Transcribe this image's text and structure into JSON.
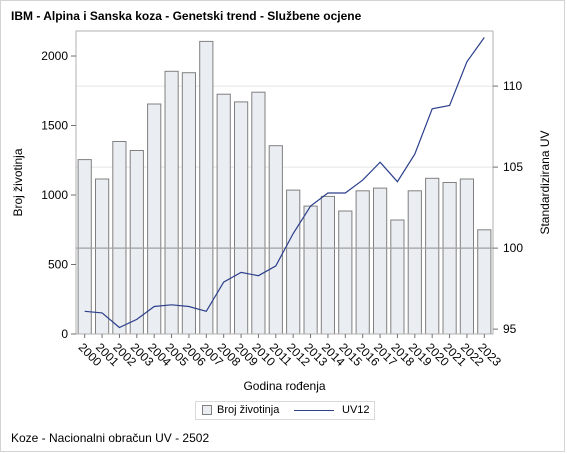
{
  "title": "IBM - Alpina i Sanska koza - Genetski trend - Službene ocjene",
  "footnote": "Koze - Nacionalni obračun UV - 2502",
  "colors": {
    "bar_fill": "#eaedf1",
    "bar_stroke": "#808080",
    "line": "#2c3f8c",
    "grid": "#e4e4e4",
    "reference": "#a0a0a0"
  },
  "chart_data": {
    "type": "bar",
    "categories": [
      "2000",
      "2001",
      "2002",
      "2003",
      "2004",
      "2005",
      "2006",
      "2007",
      "2008",
      "2009",
      "2010",
      "2011",
      "2012",
      "2013",
      "2014",
      "2015",
      "2016",
      "2017",
      "2018",
      "2019",
      "2020",
      "2021",
      "2022",
      "2023"
    ],
    "series": [
      {
        "name": "Broj životinja",
        "type": "bar",
        "axis": "left",
        "values": [
          1255,
          1115,
          1385,
          1320,
          1655,
          1890,
          1880,
          2105,
          1725,
          1670,
          1740,
          1355,
          1035,
          920,
          990,
          885,
          1030,
          1050,
          820,
          1030,
          1120,
          1090,
          1115,
          750
        ]
      },
      {
        "name": "UV12",
        "type": "line",
        "axis": "right",
        "values": [
          96.1,
          96.0,
          95.1,
          95.6,
          96.4,
          96.5,
          96.4,
          96.1,
          97.9,
          98.5,
          98.3,
          98.9,
          100.9,
          102.6,
          103.4,
          103.4,
          104.2,
          105.3,
          104.1,
          105.8,
          108.6,
          108.8,
          111.5,
          113.0
        ]
      }
    ],
    "xlabel": "Godina rođenja",
    "ylabel": "Broj životinja",
    "y2label": "Standardizirana UV",
    "ylim": [
      0,
      2180
    ],
    "y2lim": [
      94.7,
      113.4
    ],
    "yticks": [
      0,
      500,
      1000,
      1500,
      2000
    ],
    "y2ticks": [
      95,
      100,
      105,
      110
    ],
    "reference_y2": 100,
    "gridlines_y2": [
      105,
      110
    ],
    "legend_position": "bottom"
  },
  "legend": {
    "bar_label": "Broj životinja",
    "line_label": "UV12"
  }
}
